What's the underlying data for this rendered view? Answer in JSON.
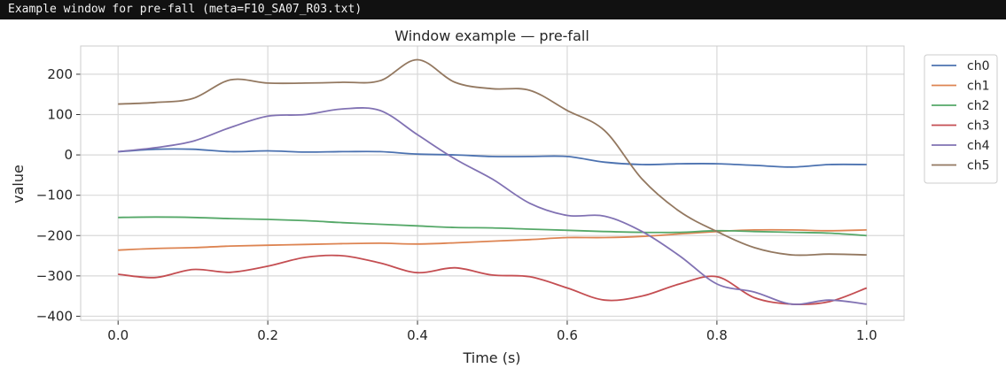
{
  "window": {
    "title": "Example window for pre-fall (meta=F10_SA07_R03.txt)"
  },
  "chart_data": {
    "type": "line",
    "title": "Window example — pre-fall",
    "xlabel": "Time (s)",
    "ylabel": "value",
    "xlim": [
      -0.05,
      1.05
    ],
    "ylim": [
      -410,
      270
    ],
    "xticks": [
      0.0,
      0.2,
      0.4,
      0.6,
      0.8,
      1.0
    ],
    "xtick_labels": [
      "0.0",
      "0.2",
      "0.4",
      "0.6",
      "0.8",
      "1.0"
    ],
    "yticks": [
      200,
      100,
      0,
      -100,
      -200,
      -300,
      -400
    ],
    "ytick_labels": [
      "200",
      "100",
      "0",
      "−100",
      "−200",
      "−300",
      "−400"
    ],
    "grid": true,
    "legend_position": "top-right outside",
    "x": [
      0.0,
      0.05,
      0.1,
      0.15,
      0.2,
      0.25,
      0.3,
      0.35,
      0.4,
      0.45,
      0.5,
      0.55,
      0.6,
      0.65,
      0.7,
      0.75,
      0.8,
      0.85,
      0.9,
      0.95,
      1.0
    ],
    "series": [
      {
        "name": "ch0",
        "color": "#4c72b0",
        "values": [
          8,
          14,
          14,
          8,
          10,
          7,
          8,
          8,
          2,
          0,
          -4,
          -4,
          -4,
          -18,
          -24,
          -22,
          -22,
          -26,
          -30,
          -24,
          -24
        ]
      },
      {
        "name": "ch1",
        "color": "#dd8452",
        "values": [
          -236,
          -232,
          -230,
          -226,
          -224,
          -222,
          -220,
          -219,
          -221,
          -218,
          -214,
          -210,
          -205,
          -205,
          -202,
          -196,
          -190,
          -186,
          -186,
          -188,
          -186
        ]
      },
      {
        "name": "ch2",
        "color": "#55a868",
        "values": [
          -155,
          -154,
          -155,
          -158,
          -160,
          -163,
          -168,
          -172,
          -176,
          -180,
          -181,
          -184,
          -187,
          -190,
          -192,
          -192,
          -188,
          -190,
          -192,
          -194,
          -200
        ]
      },
      {
        "name": "ch3",
        "color": "#c44e52",
        "values": [
          -296,
          -304,
          -284,
          -291,
          -276,
          -254,
          -250,
          -268,
          -292,
          -280,
          -298,
          -302,
          -330,
          -360,
          -350,
          -320,
          -302,
          -354,
          -370,
          -364,
          -330
        ]
      },
      {
        "name": "ch4",
        "color": "#8172b3",
        "values": [
          8,
          18,
          34,
          68,
          96,
          100,
          114,
          110,
          50,
          -10,
          -60,
          -120,
          -150,
          -152,
          -190,
          -250,
          -320,
          -340,
          -370,
          -360,
          -370
        ]
      },
      {
        "name": "ch5",
        "color": "#937860",
        "values": [
          126,
          130,
          140,
          186,
          178,
          178,
          180,
          184,
          236,
          180,
          164,
          160,
          110,
          60,
          -60,
          -140,
          -190,
          -230,
          -248,
          -246,
          -248
        ]
      }
    ]
  }
}
